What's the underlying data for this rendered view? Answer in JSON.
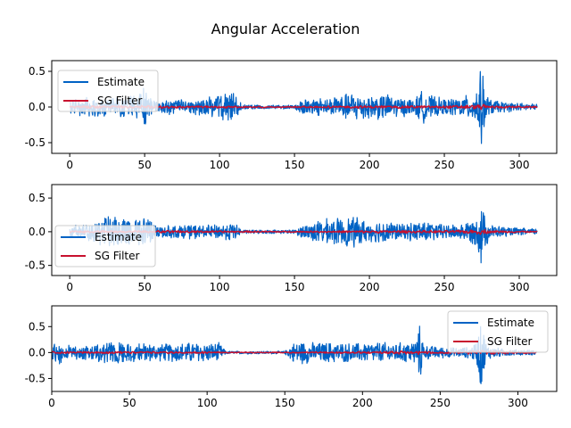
{
  "figure": {
    "title": "Angular Acceleration"
  },
  "colors": {
    "estimate": "#0062c4",
    "sg_filter": "#c8102e"
  },
  "chart_data": [
    {
      "type": "line",
      "title": "",
      "xlabel": "",
      "ylabel": "",
      "xlim": [
        -12,
        325
      ],
      "ylim": [
        -0.65,
        0.65
      ],
      "xticks": [
        0,
        50,
        100,
        150,
        200,
        250,
        300
      ],
      "yticks": [
        -0.5,
        0.0,
        0.5
      ],
      "xtick_labels": [
        "0",
        "50",
        "100",
        "150",
        "200",
        "250",
        "300"
      ],
      "ytick_labels": [
        "-0.5",
        "0.0",
        "0.5"
      ],
      "legend": {
        "position": "top-left",
        "entries": [
          "Estimate",
          "SG Filter"
        ]
      },
      "grid": false,
      "series": [
        {
          "name": "Estimate",
          "color": "#0062c4",
          "x": [
            0,
            10,
            20,
            30,
            35,
            45,
            50,
            55,
            60,
            70,
            80,
            90,
            100,
            110,
            115,
            130,
            150,
            155,
            160,
            170,
            180,
            190,
            200,
            210,
            220,
            230,
            235,
            240,
            250,
            260,
            270,
            273,
            275,
            277,
            280,
            290,
            300,
            312
          ],
          "envelope": [
            0.12,
            0.15,
            0.14,
            0.12,
            0.18,
            0.2,
            0.3,
            0.12,
            0.09,
            0.12,
            0.1,
            0.14,
            0.2,
            0.2,
            0.04,
            0.03,
            0.03,
            0.15,
            0.1,
            0.15,
            0.17,
            0.23,
            0.18,
            0.2,
            0.15,
            0.12,
            0.25,
            0.18,
            0.12,
            0.15,
            0.2,
            0.45,
            0.6,
            0.3,
            0.12,
            0.08,
            0.06,
            0.05
          ]
        },
        {
          "name": "SG Filter",
          "color": "#c8102e",
          "x": [
            0,
            50,
            100,
            150,
            200,
            250,
            270,
            275,
            280,
            312
          ],
          "envelope": [
            0.02,
            0.02,
            0.015,
            0.01,
            0.02,
            0.02,
            0.03,
            0.05,
            0.02,
            0.01
          ]
        }
      ]
    },
    {
      "type": "line",
      "title": "",
      "xlabel": "",
      "ylabel": "",
      "xlim": [
        -12,
        325
      ],
      "ylim": [
        -0.65,
        0.7
      ],
      "xticks": [
        0,
        50,
        100,
        150,
        200,
        250,
        300
      ],
      "yticks": [
        -0.5,
        0.0,
        0.5
      ],
      "xtick_labels": [
        "0",
        "50",
        "100",
        "150",
        "200",
        "250",
        "300"
      ],
      "ytick_labels": [
        "-0.5",
        "0.0",
        "0.5"
      ],
      "legend": {
        "position": "center-left",
        "entries": [
          "Estimate",
          "SG Filter"
        ]
      },
      "grid": false,
      "series": [
        {
          "name": "Estimate",
          "color": "#0062c4",
          "x": [
            0,
            10,
            20,
            30,
            40,
            50,
            55,
            60,
            70,
            80,
            90,
            100,
            110,
            115,
            130,
            150,
            155,
            160,
            170,
            180,
            190,
            200,
            210,
            220,
            230,
            235,
            240,
            250,
            260,
            270,
            273,
            275,
            277,
            280,
            290,
            300,
            312
          ],
          "envelope": [
            0.1,
            0.15,
            0.2,
            0.28,
            0.22,
            0.25,
            0.15,
            0.1,
            0.1,
            0.12,
            0.1,
            0.12,
            0.15,
            0.03,
            0.03,
            0.03,
            0.1,
            0.15,
            0.2,
            0.22,
            0.25,
            0.15,
            0.2,
            0.12,
            0.15,
            0.2,
            0.15,
            0.12,
            0.12,
            0.2,
            0.35,
            0.6,
            0.3,
            0.12,
            0.08,
            0.06,
            0.05
          ]
        },
        {
          "name": "SG Filter",
          "color": "#c8102e",
          "x": [
            0,
            50,
            100,
            150,
            200,
            250,
            270,
            275,
            280,
            312
          ],
          "envelope": [
            0.02,
            0.02,
            0.015,
            0.01,
            0.02,
            0.02,
            0.03,
            0.05,
            0.02,
            0.01
          ]
        }
      ]
    },
    {
      "type": "line",
      "title": "",
      "xlabel": "",
      "ylabel": "",
      "xlim": [
        0,
        325
      ],
      "ylim": [
        -0.75,
        0.9
      ],
      "xticks": [
        0,
        50,
        100,
        150,
        200,
        250,
        300
      ],
      "yticks": [
        -0.5,
        0.0,
        0.5
      ],
      "xtick_labels": [
        "0",
        "50",
        "100",
        "150",
        "200",
        "250",
        "300"
      ],
      "ytick_labels": [
        "-0.5",
        "0.0",
        "0.5"
      ],
      "legend": {
        "position": "top-right",
        "entries": [
          "Estimate",
          "SG Filter"
        ]
      },
      "grid": false,
      "series": [
        {
          "name": "Estimate",
          "color": "#0062c4",
          "x": [
            0,
            5,
            10,
            20,
            30,
            40,
            50,
            55,
            60,
            70,
            80,
            90,
            100,
            108,
            112,
            130,
            150,
            155,
            160,
            170,
            180,
            190,
            200,
            210,
            220,
            230,
            235,
            237,
            240,
            250,
            260,
            270,
            274,
            276,
            280,
            290,
            300,
            312
          ],
          "envelope": [
            0.2,
            0.25,
            0.15,
            0.15,
            0.2,
            0.22,
            0.25,
            0.2,
            0.2,
            0.18,
            0.2,
            0.22,
            0.2,
            0.2,
            0.03,
            0.03,
            0.03,
            0.2,
            0.25,
            0.2,
            0.22,
            0.2,
            0.2,
            0.22,
            0.2,
            0.22,
            0.3,
            0.6,
            0.15,
            0.12,
            0.1,
            0.12,
            0.3,
            0.8,
            0.15,
            0.08,
            0.06,
            0.05
          ]
        },
        {
          "name": "SG Filter",
          "color": "#c8102e",
          "x": [
            0,
            50,
            100,
            112,
            150,
            200,
            237,
            250,
            276,
            312
          ],
          "envelope": [
            0.02,
            0.02,
            0.02,
            0.01,
            0.01,
            0.02,
            0.04,
            0.02,
            0.05,
            0.01
          ]
        }
      ]
    }
  ]
}
